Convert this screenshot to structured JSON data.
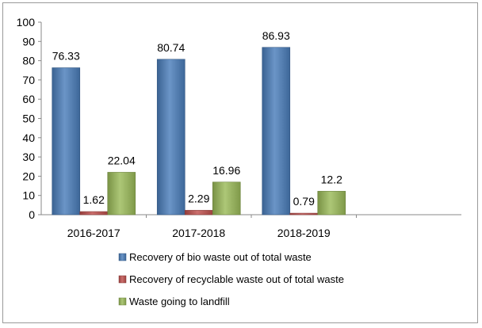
{
  "chart_data": {
    "type": "bar",
    "categories": [
      "2016-2017",
      "2017-2018",
      "2018-2019"
    ],
    "series": [
      {
        "name": "Recovery of bio waste out of total waste",
        "values": [
          76.33,
          80.74,
          86.93
        ],
        "labels": [
          "76.33",
          "80.74",
          "86.93"
        ],
        "color": "#4a7ebb"
      },
      {
        "name": "Recovery of recyclable waste out of total waste",
        "values": [
          1.62,
          2.29,
          0.79
        ],
        "labels": [
          "1.62",
          "2.29",
          "0.79"
        ],
        "color": "#c0504d"
      },
      {
        "name": "Waste going to landfill",
        "values": [
          22.04,
          16.96,
          12.2
        ],
        "labels": [
          "22.04",
          "16.96",
          "12.2"
        ],
        "color": "#9bbb59"
      }
    ],
    "ylim": [
      0,
      100
    ],
    "yticks": [
      0,
      10,
      20,
      30,
      40,
      50,
      60,
      70,
      80,
      90,
      100
    ],
    "grid": false,
    "legend_position": "bottom"
  }
}
